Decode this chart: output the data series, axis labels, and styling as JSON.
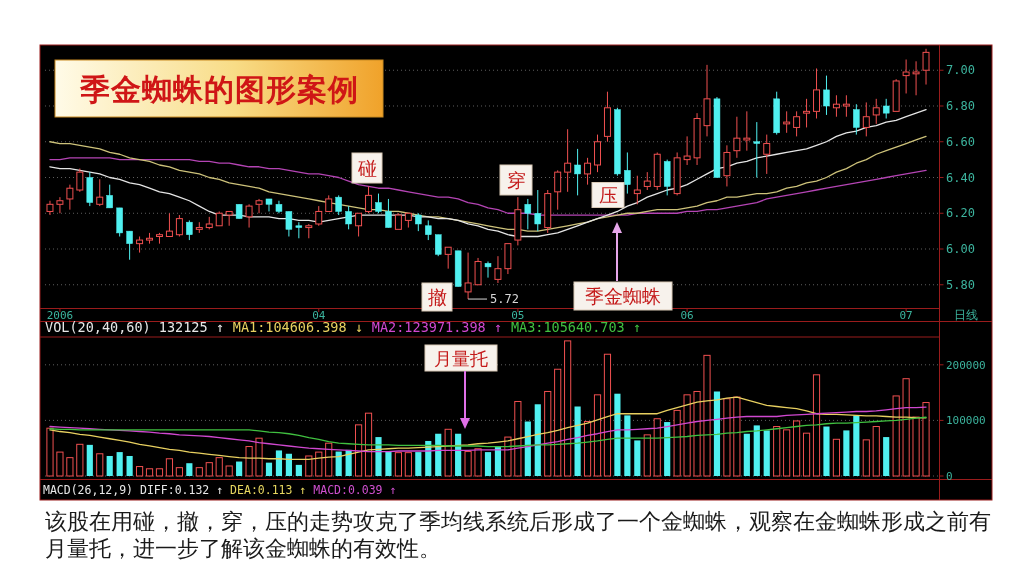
{
  "chart_data": [
    {
      "type": "candlestick",
      "title": "季金蜘蛛的图形案例",
      "xlabel": "日线",
      "categories": [
        null,
        "2006",
        null,
        null,
        null,
        null,
        null,
        null,
        null,
        null,
        null,
        null,
        null,
        null,
        null,
        null,
        null,
        null,
        null,
        null,
        null,
        null,
        null,
        null,
        null,
        null,
        null,
        "04",
        null,
        null,
        null,
        null,
        null,
        null,
        null,
        null,
        null,
        null,
        null,
        null,
        null,
        null,
        null,
        null,
        null,
        null,
        null,
        "05",
        null,
        null,
        null,
        null,
        null,
        null,
        null,
        null,
        null,
        null,
        null,
        null,
        null,
        null,
        null,
        null,
        "06",
        null,
        null,
        null,
        null,
        null,
        null,
        null,
        null,
        null,
        null,
        null,
        null,
        null,
        null,
        null,
        null,
        null,
        null,
        null,
        null,
        null,
        "07",
        null,
        null
      ],
      "ohlc": [
        [
          6.21,
          6.27,
          6.19,
          6.25
        ],
        [
          6.25,
          6.29,
          6.2,
          6.27
        ],
        [
          6.28,
          6.36,
          6.22,
          6.34
        ],
        [
          6.33,
          6.45,
          6.32,
          6.43
        ],
        [
          6.4,
          6.43,
          6.24,
          6.26
        ],
        [
          6.25,
          6.39,
          6.24,
          6.29
        ],
        [
          6.3,
          6.36,
          6.23,
          6.23
        ],
        [
          6.23,
          6.23,
          6.07,
          6.09
        ],
        [
          6.1,
          6.1,
          5.94,
          6.03
        ],
        [
          6.03,
          6.07,
          5.98,
          6.05
        ],
        [
          6.05,
          6.09,
          6.03,
          6.06
        ],
        [
          6.07,
          6.09,
          6.03,
          6.08
        ],
        [
          6.07,
          6.2,
          6.07,
          6.1
        ],
        [
          6.08,
          6.19,
          6.07,
          6.17
        ],
        [
          6.15,
          6.16,
          6.05,
          6.08
        ],
        [
          6.11,
          6.15,
          6.09,
          6.12
        ],
        [
          6.12,
          6.18,
          6.11,
          6.14
        ],
        [
          6.13,
          6.21,
          6.13,
          6.2
        ],
        [
          6.19,
          6.21,
          6.13,
          6.21
        ],
        [
          6.25,
          6.25,
          6.17,
          6.17
        ],
        [
          6.18,
          6.25,
          6.12,
          6.24
        ],
        [
          6.25,
          6.28,
          6.2,
          6.27
        ],
        [
          6.28,
          6.28,
          6.21,
          6.25
        ],
        [
          6.25,
          6.27,
          6.2,
          6.21
        ],
        [
          6.21,
          6.21,
          6.07,
          6.11
        ],
        [
          6.13,
          6.15,
          6.06,
          6.12
        ],
        [
          6.12,
          6.14,
          6.06,
          6.13
        ],
        [
          6.14,
          6.24,
          6.13,
          6.21
        ],
        [
          6.21,
          6.3,
          6.21,
          6.28
        ],
        [
          6.29,
          6.3,
          6.19,
          6.21
        ],
        [
          6.21,
          6.24,
          6.11,
          6.14
        ],
        [
          6.13,
          6.2,
          6.07,
          6.2
        ],
        [
          6.21,
          6.35,
          6.2,
          6.3
        ],
        [
          6.26,
          6.31,
          6.2,
          6.21
        ],
        [
          6.21,
          6.28,
          6.12,
          6.12
        ],
        [
          6.11,
          6.2,
          6.11,
          6.19
        ],
        [
          6.16,
          6.2,
          6.12,
          6.2
        ],
        [
          6.19,
          6.2,
          6.1,
          6.14
        ],
        [
          6.13,
          6.16,
          6.05,
          6.08
        ],
        [
          6.08,
          6.08,
          5.96,
          5.97
        ],
        [
          5.97,
          6.01,
          5.89,
          6.01
        ],
        [
          5.99,
          5.99,
          5.79,
          5.79
        ],
        [
          5.76,
          5.98,
          5.72,
          5.81
        ],
        [
          5.8,
          5.95,
          5.8,
          5.93
        ],
        [
          5.92,
          5.93,
          5.84,
          5.9
        ],
        [
          5.83,
          5.96,
          5.81,
          5.89
        ],
        [
          5.89,
          6.03,
          5.86,
          6.03
        ],
        [
          6.05,
          6.29,
          6.02,
          6.22
        ],
        [
          6.25,
          6.28,
          6.11,
          6.2
        ],
        [
          6.2,
          6.33,
          6.1,
          6.14
        ],
        [
          6.12,
          6.33,
          6.09,
          6.31
        ],
        [
          6.32,
          6.44,
          6.22,
          6.43
        ],
        [
          6.43,
          6.67,
          6.32,
          6.48
        ],
        [
          6.47,
          6.56,
          6.3,
          6.42
        ],
        [
          6.42,
          6.51,
          6.36,
          6.48
        ],
        [
          6.47,
          6.64,
          6.43,
          6.6
        ],
        [
          6.63,
          6.88,
          6.6,
          6.79
        ],
        [
          6.78,
          6.79,
          6.41,
          6.42
        ],
        [
          6.44,
          6.54,
          6.31,
          6.36
        ],
        [
          6.31,
          6.41,
          6.25,
          6.33
        ],
        [
          6.35,
          6.43,
          6.33,
          6.38
        ],
        [
          6.35,
          6.54,
          6.33,
          6.53
        ],
        [
          6.49,
          6.5,
          6.3,
          6.35
        ],
        [
          6.31,
          6.54,
          6.3,
          6.51
        ],
        [
          6.5,
          6.63,
          6.47,
          6.52
        ],
        [
          6.51,
          6.76,
          6.47,
          6.73
        ],
        [
          6.69,
          7.03,
          6.63,
          6.84
        ],
        [
          6.84,
          6.85,
          6.4,
          6.4
        ],
        [
          6.41,
          6.58,
          6.35,
          6.54
        ],
        [
          6.55,
          6.74,
          6.51,
          6.62
        ],
        [
          6.61,
          6.77,
          6.55,
          6.62
        ],
        [
          6.6,
          6.71,
          6.4,
          6.59
        ],
        [
          6.53,
          6.64,
          6.42,
          6.59
        ],
        [
          6.84,
          6.88,
          6.64,
          6.65
        ],
        [
          6.7,
          6.77,
          6.65,
          6.71
        ],
        [
          6.68,
          6.77,
          6.63,
          6.74
        ],
        [
          6.76,
          6.84,
          6.68,
          6.77
        ],
        [
          6.77,
          7.01,
          6.73,
          6.89
        ],
        [
          6.89,
          6.97,
          6.75,
          6.8
        ],
        [
          6.79,
          6.86,
          6.74,
          6.81
        ],
        [
          6.8,
          6.86,
          6.74,
          6.81
        ],
        [
          6.78,
          6.81,
          6.64,
          6.68
        ],
        [
          6.68,
          6.82,
          6.63,
          6.74
        ],
        [
          6.75,
          6.84,
          6.7,
          6.79
        ],
        [
          6.8,
          6.84,
          6.73,
          6.76
        ],
        [
          6.77,
          6.95,
          6.77,
          6.94
        ],
        [
          6.97,
          7.06,
          6.87,
          6.99
        ],
        [
          6.98,
          7.05,
          6.86,
          6.99
        ],
        [
          7.0,
          7.12,
          6.92,
          7.1
        ]
      ],
      "colors": [
        "#f05050",
        "#f05050",
        "#f05050",
        "#f05050",
        "#50f0f0",
        "#f05050",
        "#50f0f0",
        "#50f0f0",
        "#50f0f0",
        "#f05050",
        "#f05050",
        "#f05050",
        "#f05050",
        "#f05050",
        "#50f0f0",
        "#f05050",
        "#f05050",
        "#f05050",
        "#f05050",
        "#50f0f0",
        "#f05050",
        "#f05050",
        "#50f0f0",
        "#50f0f0",
        "#50f0f0",
        "#50f0f0",
        "#f05050",
        "#f05050",
        "#f05050",
        "#50f0f0",
        "#50f0f0",
        "#f05050",
        "#f05050",
        "#50f0f0",
        "#50f0f0",
        "#f05050",
        "#f05050",
        "#50f0f0",
        "#50f0f0",
        "#50f0f0",
        "#f05050",
        "#50f0f0",
        "#f05050",
        "#f05050",
        "#50f0f0",
        "#f05050",
        "#f05050",
        "#f05050",
        "#50f0f0",
        "#50f0f0",
        "#f05050",
        "#f05050",
        "#f05050",
        "#50f0f0",
        "#f05050",
        "#f05050",
        "#f05050",
        "#50f0f0",
        "#50f0f0",
        "#f05050",
        "#f05050",
        "#f05050",
        "#50f0f0",
        "#f05050",
        "#f05050",
        "#f05050",
        "#f05050",
        "#50f0f0",
        "#f05050",
        "#f05050",
        "#f05050",
        "#50f0f0",
        "#f05050",
        "#50f0f0",
        "#f05050",
        "#f05050",
        "#f05050",
        "#f05050",
        "#50f0f0",
        "#f05050",
        "#f05050",
        "#50f0f0",
        "#f05050",
        "#f05050",
        "#50f0f0",
        "#f05050",
        "#f05050",
        "#f05050",
        "#f05050"
      ],
      "series": [
        {
          "type": "line",
          "color": "#b444b4",
          "values": [
            6.5,
            6.5,
            6.51,
            6.51,
            6.51,
            6.51,
            6.51,
            6.5,
            6.5,
            6.5,
            6.5,
            6.5,
            6.5,
            6.5,
            6.5,
            6.49,
            6.49,
            6.48,
            6.48,
            6.47,
            6.46,
            6.46,
            6.45,
            6.45,
            6.44,
            6.43,
            6.42,
            6.42,
            6.41,
            6.4,
            6.38,
            6.36,
            6.35,
            6.34,
            6.34,
            6.33,
            6.32,
            6.31,
            6.3,
            6.29,
            6.29,
            6.28,
            6.26,
            6.25,
            6.23,
            6.22,
            6.2,
            6.2,
            6.2,
            6.19,
            6.19,
            6.19,
            6.19,
            6.19,
            6.19,
            6.19,
            6.19,
            6.19,
            6.19,
            6.2,
            6.2,
            6.2,
            6.2,
            6.2,
            6.21,
            6.21,
            6.22,
            6.22,
            6.23,
            6.24,
            6.25,
            6.26,
            6.28,
            6.29,
            6.3,
            6.31,
            6.32,
            6.33,
            6.34,
            6.35,
            6.36,
            6.37,
            6.38,
            6.39,
            6.4,
            6.41,
            6.42,
            6.43,
            6.44
          ]
        },
        {
          "type": "line",
          "color": "#cdc27a",
          "values": [
            6.6,
            6.59,
            6.59,
            6.58,
            6.57,
            6.56,
            6.54,
            6.53,
            6.51,
            6.5,
            6.49,
            6.47,
            6.46,
            6.44,
            6.43,
            6.42,
            6.4,
            6.39,
            6.37,
            6.36,
            6.35,
            6.34,
            6.32,
            6.31,
            6.3,
            6.29,
            6.28,
            6.27,
            6.26,
            6.25,
            6.24,
            6.23,
            6.22,
            6.22,
            6.21,
            6.21,
            6.2,
            6.19,
            6.18,
            6.18,
            6.17,
            6.16,
            6.15,
            6.14,
            6.13,
            6.12,
            6.11,
            6.11,
            6.1,
            6.1,
            6.11,
            6.12,
            6.13,
            6.14,
            6.15,
            6.17,
            6.18,
            6.19,
            6.2,
            6.2,
            6.21,
            6.22,
            6.22,
            6.22,
            6.23,
            6.24,
            6.26,
            6.27,
            6.29,
            6.29,
            6.3,
            6.31,
            6.31,
            6.32,
            6.34,
            6.35,
            6.37,
            6.38,
            6.4,
            6.43,
            6.45,
            6.48,
            6.5,
            6.53,
            6.55,
            6.57,
            6.59,
            6.61,
            6.63
          ]
        },
        {
          "type": "line",
          "color": "#e4e4e4",
          "values": [
            6.46,
            6.45,
            6.45,
            6.44,
            6.43,
            6.42,
            6.4,
            6.39,
            6.37,
            6.36,
            6.34,
            6.32,
            6.31,
            6.29,
            6.27,
            6.24,
            6.21,
            6.19,
            6.19,
            6.19,
            6.18,
            6.18,
            6.18,
            6.17,
            6.17,
            6.16,
            6.16,
            6.15,
            6.16,
            6.17,
            6.18,
            6.19,
            6.19,
            6.19,
            6.19,
            6.19,
            6.19,
            6.18,
            6.18,
            6.17,
            6.17,
            6.16,
            6.14,
            6.13,
            6.11,
            6.1,
            6.08,
            6.07,
            6.07,
            6.07,
            6.08,
            6.09,
            6.11,
            6.13,
            6.15,
            6.17,
            6.19,
            6.21,
            6.24,
            6.26,
            6.29,
            6.31,
            6.33,
            6.34,
            6.36,
            6.39,
            6.42,
            6.45,
            6.46,
            6.48,
            6.49,
            6.51,
            6.52,
            6.53,
            6.54,
            6.55,
            6.56,
            6.58,
            6.6,
            6.63,
            6.65,
            6.66,
            6.68,
            6.69,
            6.71,
            6.72,
            6.74,
            6.76,
            6.78
          ]
        }
      ],
      "ylim": [
        5.67,
        7.13
      ],
      "yticks": [
        {
          "value": 5.8,
          "label": "5.80"
        },
        {
          "value": 6.0,
          "label": "6.00"
        },
        {
          "value": 6.2,
          "label": "6.20"
        },
        {
          "value": 6.4,
          "label": "6.40"
        },
        {
          "value": 6.6,
          "label": "6.60"
        },
        {
          "value": 6.8,
          "label": "6.80"
        },
        {
          "value": 7.0,
          "label": "7.00"
        }
      ],
      "grid": "y",
      "annotations": [
        "碰",
        "撤",
        "穿",
        "压",
        "季金蜘蛛",
        "5.72"
      ]
    },
    {
      "type": "bar",
      "title": "VOL(20,40,60) 132125 ↑",
      "categories": [
        null,
        null,
        null,
        null,
        null,
        null,
        null,
        null,
        null,
        null,
        null,
        null,
        null,
        null,
        null,
        null,
        null,
        null,
        null,
        null,
        null,
        null,
        null,
        null,
        null,
        null,
        null,
        null,
        null,
        null,
        null,
        null,
        null,
        null,
        null,
        null,
        null,
        null,
        null,
        null,
        null,
        null,
        null,
        null,
        null,
        null,
        null,
        null,
        null,
        null,
        null,
        null,
        null,
        null,
        null,
        null,
        null,
        null,
        null,
        null,
        null,
        null,
        null,
        null,
        null,
        null,
        null,
        null,
        null,
        null,
        null,
        null,
        null,
        null,
        null,
        null,
        null,
        null,
        null,
        null,
        null,
        null,
        null,
        null,
        null,
        null,
        null,
        null,
        null
      ],
      "series": [
        {
          "type": "bar",
          "colors": [
            "#f05050",
            "#f05050",
            "#f05050",
            "#f05050",
            "#50f0f0",
            "#f05050",
            "#50f0f0",
            "#50f0f0",
            "#50f0f0",
            "#f05050",
            "#f05050",
            "#f05050",
            "#f05050",
            "#f05050",
            "#50f0f0",
            "#f05050",
            "#f05050",
            "#f05050",
            "#f05050",
            "#50f0f0",
            "#f05050",
            "#f05050",
            "#50f0f0",
            "#50f0f0",
            "#50f0f0",
            "#50f0f0",
            "#f05050",
            "#f05050",
            "#f05050",
            "#50f0f0",
            "#50f0f0",
            "#f05050",
            "#f05050",
            "#50f0f0",
            "#50f0f0",
            "#f05050",
            "#f05050",
            "#50f0f0",
            "#50f0f0",
            "#50f0f0",
            "#f05050",
            "#50f0f0",
            "#f05050",
            "#f05050",
            "#50f0f0",
            "#50f0f0",
            "#f05050",
            "#f05050",
            "#50f0f0",
            "#50f0f0",
            "#f05050",
            "#f05050",
            "#f05050",
            "#50f0f0",
            "#f05050",
            "#f05050",
            "#f05050",
            "#50f0f0",
            "#50f0f0",
            "#50f0f0",
            "#f05050",
            "#f05050",
            "#50f0f0",
            "#f05050",
            "#f05050",
            "#f05050",
            "#f05050",
            "#50f0f0",
            "#f05050",
            "#f05050",
            "#50f0f0",
            "#50f0f0",
            "#50f0f0",
            "#f05050",
            "#f05050",
            "#f05050",
            "#f05050",
            "#f05050",
            "#50f0f0",
            "#f05050",
            "#50f0f0",
            "#50f0f0",
            "#f05050",
            "#f05050",
            "#50f0f0",
            "#f05050",
            "#f05050",
            "#f05050",
            "#f05050"
          ],
          "values": [
            86000,
            43000,
            33000,
            57000,
            56000,
            40000,
            36000,
            43000,
            36000,
            17000,
            13000,
            13000,
            31000,
            15000,
            23000,
            15000,
            24000,
            33000,
            18000,
            26000,
            53000,
            68000,
            24000,
            46000,
            40000,
            20000,
            36000,
            43000,
            59000,
            44000,
            47000,
            92000,
            113000,
            70000,
            44000,
            42000,
            42000,
            43000,
            63000,
            76000,
            84000,
            76000,
            44000,
            49000,
            43000,
            52000,
            70000,
            134000,
            98000,
            129000,
            152000,
            192000,
            243000,
            125000,
            98000,
            146000,
            219000,
            148000,
            109000,
            64000,
            74000,
            103000,
            97000,
            118000,
            146000,
            152000,
            217000,
            152000,
            139000,
            142000,
            76000,
            91000,
            82000,
            89000,
            83000,
            99000,
            77000,
            182000,
            89000,
            66000,
            82000,
            109000,
            65000,
            89000,
            70000,
            144000,
            175000,
            106000,
            132125
          ]
        },
        {
          "type": "line",
          "name": "MA1:104606.398 ↓",
          "color": "#e8d060",
          "values": [
            83000,
            80000,
            78000,
            75000,
            73000,
            70000,
            67000,
            64000,
            61000,
            57000,
            54000,
            51000,
            48000,
            46000,
            43000,
            41000,
            39000,
            37000,
            35000,
            33000,
            32000,
            32000,
            31000,
            31000,
            30000,
            30000,
            30000,
            32000,
            34000,
            35000,
            39000,
            43000,
            47000,
            48000,
            49000,
            50000,
            50000,
            51000,
            52000,
            53000,
            54000,
            55000,
            56000,
            58000,
            59000,
            61000,
            63000,
            67000,
            71000,
            75000,
            78000,
            82000,
            87000,
            91000,
            95000,
            101000,
            107000,
            112000,
            112000,
            112000,
            112000,
            112000,
            118000,
            123000,
            128000,
            133000,
            135000,
            137000,
            140000,
            142000,
            137000,
            132000,
            127000,
            125000,
            123000,
            121000,
            117000,
            112000,
            111000,
            111000,
            110000,
            109000,
            108000,
            108000,
            107000,
            106000,
            106000,
            105000,
            104606.398
          ]
        },
        {
          "type": "line",
          "name": "MA2:123971.398 ↑",
          "color": "#d048d0",
          "values": [
            89000,
            88000,
            87000,
            86000,
            85000,
            84000,
            83000,
            82000,
            81000,
            80000,
            79000,
            77000,
            76000,
            74000,
            73000,
            72000,
            71000,
            69000,
            67000,
            65000,
            63000,
            60000,
            58000,
            56000,
            54000,
            52000,
            50000,
            49000,
            48000,
            47000,
            46000,
            45000,
            44000,
            44000,
            44000,
            45000,
            45000,
            45000,
            45000,
            46000,
            46000,
            46000,
            46000,
            47000,
            47000,
            47000,
            47000,
            50000,
            53000,
            56000,
            59000,
            62000,
            66000,
            69000,
            73000,
            76000,
            80000,
            83000,
            83000,
            84000,
            85000,
            86000,
            89000,
            92000,
            95000,
            98000,
            100000,
            102000,
            104000,
            106000,
            107000,
            107000,
            107000,
            107000,
            109000,
            110000,
            111000,
            112000,
            113000,
            114000,
            115000,
            116000,
            116000,
            117000,
            119000,
            121000,
            123000,
            123000,
            123971.398
          ]
        },
        {
          "type": "line",
          "name": "MA3:105640.703 ↑",
          "color": "#40c040",
          "values": [
            85000,
            84000,
            84000,
            83000,
            83000,
            83000,
            83000,
            83000,
            83000,
            83000,
            83000,
            83000,
            83000,
            83000,
            83000,
            83000,
            83000,
            83000,
            83000,
            83000,
            83000,
            81000,
            79000,
            78000,
            76000,
            73000,
            69000,
            66000,
            62000,
            59000,
            58000,
            57000,
            56000,
            56000,
            56000,
            55000,
            55000,
            55000,
            55000,
            55000,
            54000,
            54000,
            54000,
            54000,
            53000,
            53000,
            53000,
            54000,
            55000,
            56000,
            56000,
            57000,
            58000,
            59000,
            61000,
            63000,
            66000,
            68000,
            68000,
            68000,
            68000,
            68000,
            69000,
            70000,
            71000,
            73000,
            74000,
            75000,
            77000,
            78000,
            80000,
            81000,
            83000,
            85000,
            87000,
            89000,
            91000,
            92000,
            94000,
            95000,
            95000,
            96000,
            97000,
            98000,
            99000,
            100000,
            102000,
            104000,
            105640.703
          ]
        }
      ],
      "ylim": [
        0,
        250000
      ],
      "yticks": [
        0,
        100000,
        200000
      ],
      "grid": "y",
      "legend": "top left",
      "tick_labels": "y",
      "annotations": [
        "月量托",
        "MACD(26,12,9)",
        "DIFF:0.132 ↑",
        "DEA:0.113 ↑",
        "MACD:0.039 ↑",
        "该股在用碰，撤，穿，压的走势攻克了季均线系统后形成了一个金蜘蛛，观察在金蜘蛛形成之前有月量托，进一步了解该金蜘蛛的有效性。"
      ]
    }
  ]
}
